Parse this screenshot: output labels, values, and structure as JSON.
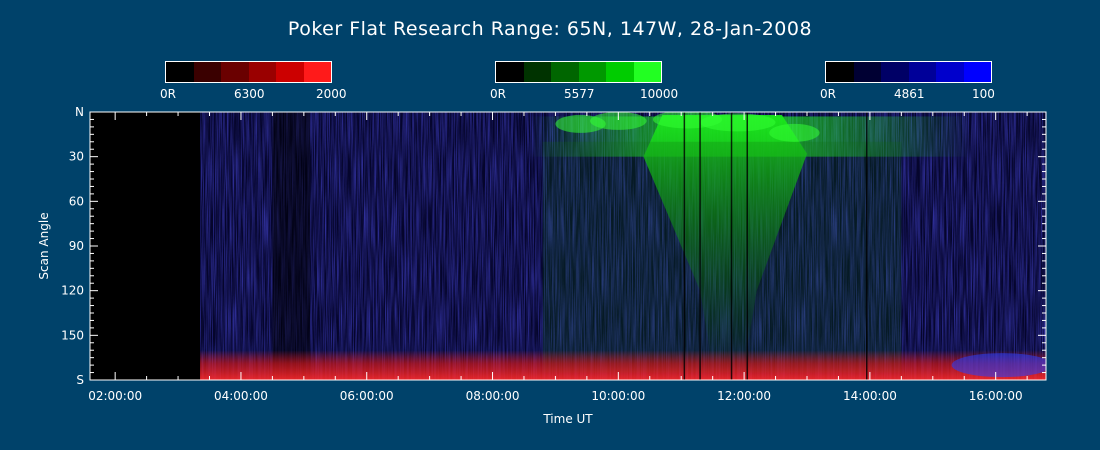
{
  "title": "Poker Flat Research Range: 65N, 147W, 28-Jan-2008",
  "colorbars": [
    {
      "wavelength": "6300",
      "min_label": "0R",
      "max_label": "2000",
      "colors": [
        "#000000",
        "#3a0000",
        "#6a0000",
        "#9a0000",
        "#cc0000",
        "#ff1a1a"
      ]
    },
    {
      "wavelength": "5577",
      "min_label": "0R",
      "max_label": "10000",
      "colors": [
        "#000000",
        "#003300",
        "#006600",
        "#009900",
        "#00cc00",
        "#22ff22"
      ]
    },
    {
      "wavelength": "4861",
      "min_label": "0R",
      "max_label": "100",
      "colors": [
        "#000000",
        "#000033",
        "#000066",
        "#000099",
        "#0000cc",
        "#0000ff"
      ]
    }
  ],
  "chart_data": {
    "type": "heatmap",
    "title": "Poker Flat Research Range: 65N, 147W, 28-Jan-2008",
    "xlabel": "Time UT",
    "ylabel": "Scan Angle",
    "x_ticks": [
      "02:00:00",
      "04:00:00",
      "06:00:00",
      "08:00:00",
      "10:00:00",
      "12:00:00",
      "14:00:00",
      "16:00:00"
    ],
    "x_tick_hours": [
      2,
      4,
      6,
      8,
      10,
      12,
      14,
      16
    ],
    "xlim_hours": [
      1.6,
      16.8
    ],
    "y_ticks": [
      "N",
      "30",
      "60",
      "90",
      "120",
      "150",
      "S"
    ],
    "y_tick_values": [
      0,
      30,
      60,
      90,
      120,
      150,
      180
    ],
    "ylim": [
      0,
      180
    ],
    "data_start_hour": 3.35,
    "grid": false,
    "channels": [
      {
        "name": "6300",
        "color": "#ff1a1a",
        "feature": "red emission near S horizon (scan ~160-180) from ~03:20 to end"
      },
      {
        "name": "5577",
        "color": "#22ff22",
        "feature": "green auroral arc near N (scan ~5-30) ~09:00-15:00, widening toward zenith ~11:00-12:30"
      },
      {
        "name": "4861",
        "color": "#0000ff",
        "feature": "blue background noise throughout; enhancement near S after ~15:30"
      }
    ]
  }
}
